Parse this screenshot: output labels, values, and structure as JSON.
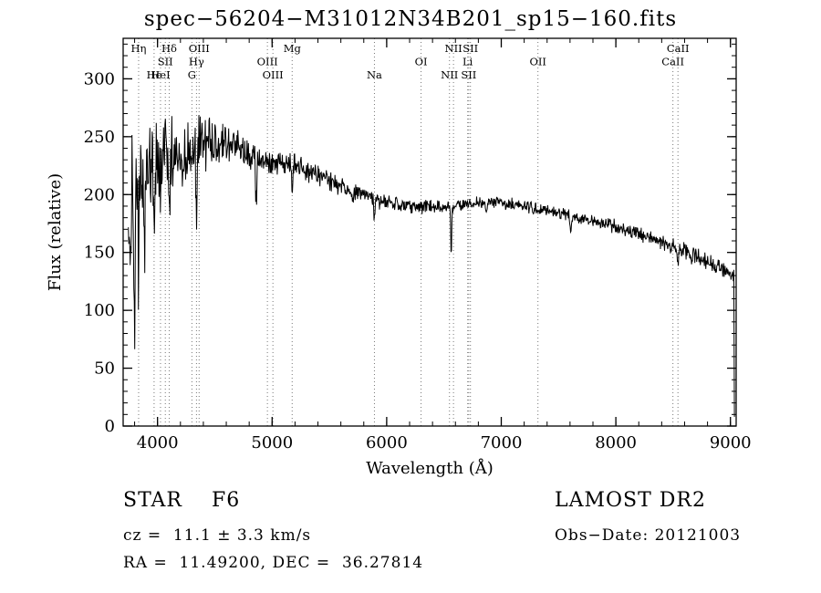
{
  "title": "spec−56204−M31012N34B201_sp15−160.fits",
  "annotations": {
    "class_label": "STAR    F6",
    "survey": "LAMOST DR2",
    "cz": "cz =  11.1 ± 3.3 km/s",
    "obs_date": "Obs−Date: 20121003",
    "radec": "RA =  11.49200, DEC =  36.27814"
  },
  "chart_data": {
    "type": "line",
    "title": "spec−56204−M31012N34B201_sp15−160.fits",
    "xlabel": "Wavelength (Å)",
    "ylabel": "Flux (relative)",
    "xlim": [
      3700,
      9050
    ],
    "ylim": [
      0,
      335
    ],
    "xticks": [
      4000,
      5000,
      6000,
      7000,
      8000,
      9000
    ],
    "yticks": [
      0,
      50,
      100,
      150,
      200,
      250,
      300
    ],
    "x_minor_step": 200,
    "y_minor_step": 10,
    "grid": false,
    "line_color": "#000000",
    "marker_line_color": "#777777",
    "spectral_lines": [
      {
        "label": "Hη",
        "wavelength": 3835,
        "row": 0
      },
      {
        "label": "Hδ",
        "wavelength": 4102,
        "row": 0
      },
      {
        "label": "OIII",
        "wavelength": 4363,
        "row": 0
      },
      {
        "label": "Mg",
        "wavelength": 5175,
        "row": 0
      },
      {
        "label": "NII",
        "wavelength": 6583,
        "row": 0
      },
      {
        "label": "SII",
        "wavelength": 6731,
        "row": 0
      },
      {
        "label": "CaII",
        "wavelength": 8542,
        "row": 0
      },
      {
        "label": "SII",
        "wavelength": 4068,
        "row": 1
      },
      {
        "label": "Hγ",
        "wavelength": 4340,
        "row": 1
      },
      {
        "label": "OIII",
        "wavelength": 4959,
        "row": 1
      },
      {
        "label": "OI",
        "wavelength": 6300,
        "row": 1
      },
      {
        "label": "Li",
        "wavelength": 6707,
        "row": 1
      },
      {
        "label": "OII",
        "wavelength": 7320,
        "row": 1
      },
      {
        "label": "CaII",
        "wavelength": 8498,
        "row": 1
      },
      {
        "label": "Hϵ",
        "wavelength": 3970,
        "row": 2
      },
      {
        "label": "HeI",
        "wavelength": 4026,
        "row": 2
      },
      {
        "label": "G",
        "wavelength": 4300,
        "row": 2
      },
      {
        "label": "OIII",
        "wavelength": 5007,
        "row": 2
      },
      {
        "label": "Na",
        "wavelength": 5893,
        "row": 2
      },
      {
        "label": "NII",
        "wavelength": 6548,
        "row": 2
      },
      {
        "label": "SII",
        "wavelength": 6716,
        "row": 2
      }
    ],
    "continuum": [
      [
        3745,
        165
      ],
      [
        3780,
        185
      ],
      [
        3820,
        205
      ],
      [
        3860,
        220
      ],
      [
        3900,
        228
      ],
      [
        4000,
        232
      ],
      [
        4100,
        236
      ],
      [
        4200,
        236
      ],
      [
        4300,
        240
      ],
      [
        4400,
        246
      ],
      [
        4500,
        246
      ],
      [
        4600,
        243
      ],
      [
        4700,
        239
      ],
      [
        4800,
        233
      ],
      [
        4900,
        231
      ],
      [
        5000,
        229
      ],
      [
        5100,
        227
      ],
      [
        5200,
        226
      ],
      [
        5300,
        221
      ],
      [
        5400,
        216
      ],
      [
        5500,
        211
      ],
      [
        5600,
        207
      ],
      [
        5700,
        202
      ],
      [
        5800,
        198
      ],
      [
        5900,
        195
      ],
      [
        6000,
        193
      ],
      [
        6100,
        192
      ],
      [
        6200,
        191
      ],
      [
        6300,
        190
      ],
      [
        6400,
        189
      ],
      [
        6500,
        188
      ],
      [
        6600,
        190
      ],
      [
        6700,
        192
      ],
      [
        6800,
        193
      ],
      [
        6900,
        194
      ],
      [
        7000,
        193
      ],
      [
        7100,
        192
      ],
      [
        7200,
        190
      ],
      [
        7300,
        188
      ],
      [
        7400,
        186
      ],
      [
        7500,
        184
      ],
      [
        7600,
        182
      ],
      [
        7700,
        179
      ],
      [
        7800,
        177
      ],
      [
        7900,
        174
      ],
      [
        8000,
        172
      ],
      [
        8100,
        169
      ],
      [
        8200,
        166
      ],
      [
        8300,
        163
      ],
      [
        8400,
        159
      ],
      [
        8500,
        155
      ],
      [
        8600,
        151
      ],
      [
        8700,
        147
      ],
      [
        8800,
        142
      ],
      [
        8900,
        137
      ],
      [
        9000,
        132
      ],
      [
        9030,
        128
      ]
    ],
    "noise": [
      [
        3745,
        75
      ],
      [
        3800,
        70
      ],
      [
        3850,
        60
      ],
      [
        3900,
        50
      ],
      [
        4000,
        45
      ],
      [
        4100,
        40
      ],
      [
        4200,
        36
      ],
      [
        4300,
        32
      ],
      [
        4400,
        28
      ],
      [
        4600,
        21
      ],
      [
        4800,
        17
      ],
      [
        5000,
        13
      ],
      [
        5200,
        12
      ],
      [
        5500,
        10
      ],
      [
        5800,
        9
      ],
      [
        6000,
        8
      ],
      [
        6500,
        7
      ],
      [
        7000,
        6
      ],
      [
        7500,
        6
      ],
      [
        8000,
        7
      ],
      [
        8500,
        8
      ],
      [
        9000,
        9
      ]
    ],
    "absorption_dips": [
      {
        "center": 3797,
        "depth": 110,
        "width": 7
      },
      {
        "center": 3835,
        "depth": 70,
        "width": 6
      },
      {
        "center": 3889,
        "depth": 80,
        "width": 6
      },
      {
        "center": 3970,
        "depth": 75,
        "width": 7
      },
      {
        "center": 4026,
        "depth": 30,
        "width": 5
      },
      {
        "center": 4102,
        "depth": 60,
        "width": 7
      },
      {
        "center": 4340,
        "depth": 55,
        "width": 7
      },
      {
        "center": 4861,
        "depth": 40,
        "width": 7
      },
      {
        "center": 5175,
        "depth": 18,
        "width": 9
      },
      {
        "center": 5893,
        "depth": 16,
        "width": 7
      },
      {
        "center": 6563,
        "depth": 38,
        "width": 6
      },
      {
        "center": 6870,
        "depth": 8,
        "width": 8
      },
      {
        "center": 7605,
        "depth": 12,
        "width": 10
      },
      {
        "center": 8542,
        "depth": 12,
        "width": 7
      },
      {
        "center": 8662,
        "depth": 10,
        "width": 7
      }
    ],
    "sample_step": 4,
    "x_start": 3745,
    "x_end": 9030
  }
}
